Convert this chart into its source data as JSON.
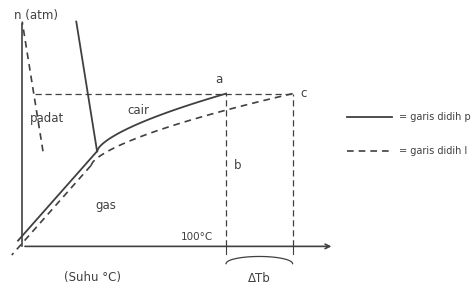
{
  "bg_color": "#ffffff",
  "line_color": "#404040",
  "ylabel": "n (atm)",
  "xlabel_main": "(Suhu °C)",
  "xlabel_delta": "ΔTb",
  "label_100": "100°C",
  "label_cair": "cair",
  "label_padat": "padat",
  "label_gas": "gas",
  "label_a": "a",
  "label_b": "b",
  "label_c": "c",
  "legend_solid": "= garis didih p",
  "legend_dash": "= garis didih l"
}
